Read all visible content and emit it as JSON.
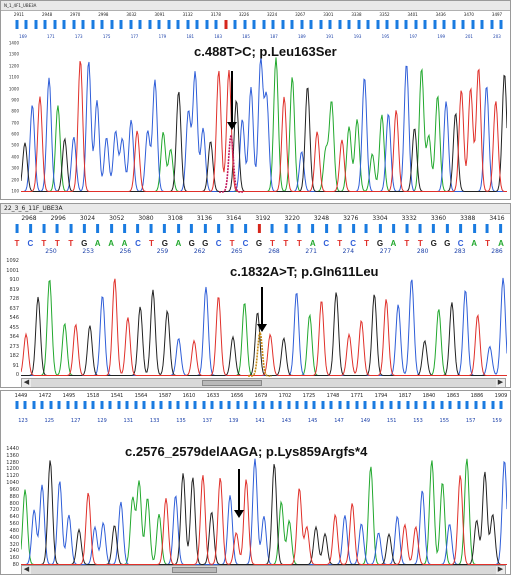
{
  "colors": {
    "A": "#22a82e",
    "C": "#2f5ed8",
    "G": "#222222",
    "T": "#e0302a",
    "mut": "#c2185b"
  },
  "panels": [
    {
      "title": "N_1_4F1_UBE3A",
      "positions": [
        "2911",
        "2948",
        "2970",
        "2998",
        "3032",
        "3091",
        "3132",
        "3178",
        "3226",
        "3224",
        "3267",
        "3301",
        "3338",
        "3352",
        "3401",
        "3436",
        "3470",
        "3497"
      ],
      "sequence": "",
      "codons": [
        "169",
        "171",
        "173",
        "175",
        "177",
        "179",
        "181",
        "183",
        "185",
        "187",
        "189",
        "191",
        "193",
        "195",
        "197",
        "199",
        "201",
        "203"
      ],
      "y_ticks": [
        "1400",
        "1300",
        "1200",
        "1100",
        "1000",
        "900",
        "800",
        "700",
        "600",
        "500",
        "400",
        "300",
        "200",
        "100"
      ],
      "annotation": "c.488T>C; p.Leu163Ser"
    },
    {
      "title": "22_3_6_11F_UBE3A",
      "positions": [
        "2968",
        "2996",
        "3024",
        "3052",
        "3080",
        "3108",
        "3136",
        "3164",
        "3192",
        "3220",
        "3248",
        "3276",
        "3304",
        "3332",
        "3360",
        "3388",
        "3416"
      ],
      "sequence": "TCTTTGAAACTGAGGCTCGTTTACTCTGATTGGCATA",
      "codons": [
        "250",
        "253",
        "256",
        "259",
        "262",
        "265",
        "268",
        "271",
        "274",
        "277",
        "280",
        "283",
        "286"
      ],
      "y_ticks": [
        "1092",
        "1001",
        "910",
        "819",
        "728",
        "637",
        "546",
        "455",
        "364",
        "273",
        "182",
        "91",
        "0"
      ],
      "annotation": "c.1832A>T; p.Gln611Leu"
    },
    {
      "title": "",
      "positions": [
        "1449",
        "1472",
        "1495",
        "1518",
        "1541",
        "1564",
        "1587",
        "1610",
        "1633",
        "1656",
        "1679",
        "1702",
        "1725",
        "1748",
        "1771",
        "1794",
        "1817",
        "1840",
        "1863",
        "1886",
        "1909"
      ],
      "sequence": "",
      "codons": [
        "123",
        "125",
        "127",
        "129",
        "131",
        "133",
        "135",
        "137",
        "139",
        "141",
        "143",
        "145",
        "147",
        "149",
        "151",
        "153",
        "155",
        "157",
        "159"
      ],
      "y_ticks": [
        "1440",
        "1360",
        "1280",
        "1200",
        "1120",
        "1040",
        "960",
        "880",
        "800",
        "720",
        "640",
        "560",
        "480",
        "400",
        "320",
        "240",
        "160",
        "80"
      ],
      "annotation": "c.2576_2579delAAGA; p.Lys859Argfs*4"
    }
  ]
}
